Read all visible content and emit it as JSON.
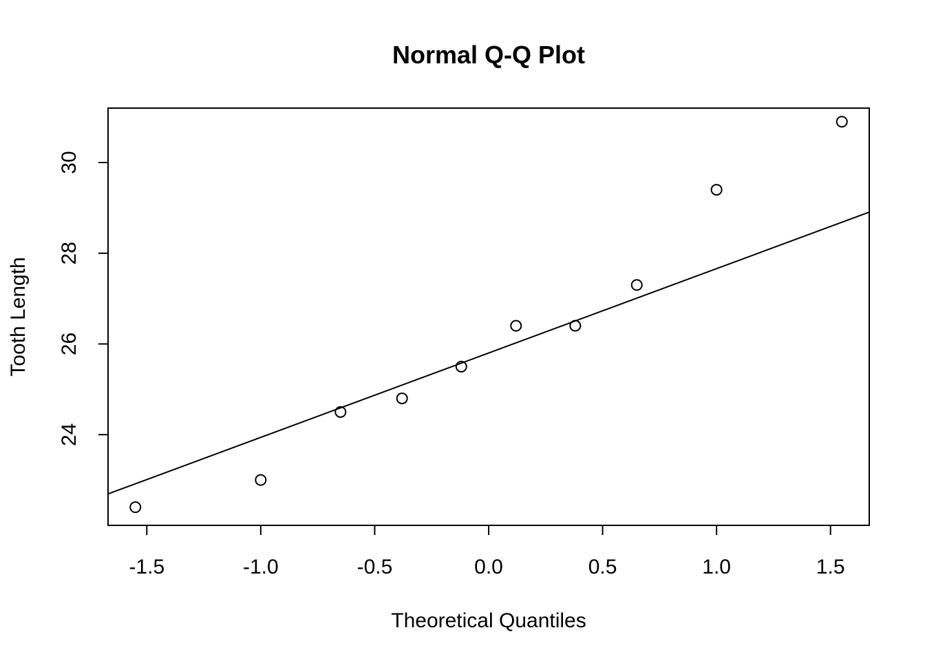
{
  "chart_data": {
    "type": "scatter",
    "title": "Normal Q-Q Plot",
    "xlabel": "Theoretical Quantiles",
    "ylabel": "Tooth Length",
    "xlim": [
      -1.67,
      1.67
    ],
    "ylim": [
      22.0,
      31.2
    ],
    "xticks": [
      -1.5,
      -1.0,
      -0.5,
      0.0,
      0.5,
      1.0,
      1.5
    ],
    "xtick_labels": [
      "-1.5",
      "-1.0",
      "-0.5",
      "0.0",
      "0.5",
      "1.0",
      "1.5"
    ],
    "yticks": [
      24,
      26,
      28,
      30
    ],
    "ytick_labels": [
      "24",
      "26",
      "28",
      "30"
    ],
    "grid": false,
    "points": [
      {
        "x": -1.55,
        "y": 22.4
      },
      {
        "x": -1.0,
        "y": 23.0
      },
      {
        "x": -0.65,
        "y": 24.5
      },
      {
        "x": -0.38,
        "y": 24.8
      },
      {
        "x": -0.12,
        "y": 25.5
      },
      {
        "x": 0.12,
        "y": 26.4
      },
      {
        "x": 0.38,
        "y": 26.4
      },
      {
        "x": 0.65,
        "y": 27.3
      },
      {
        "x": 1.0,
        "y": 29.4
      },
      {
        "x": 1.55,
        "y": 30.9
      }
    ],
    "reference_line": {
      "intercept": 25.8,
      "slope": 1.86
    }
  }
}
